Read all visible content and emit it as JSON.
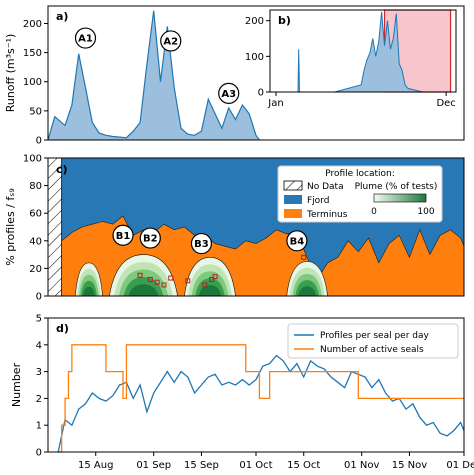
{
  "chart_data": [
    {
      "panel": "a)",
      "type": "area",
      "ylabel": "Runoff (m³s⁻¹)",
      "ylim": [
        0,
        230
      ],
      "yticks": [
        0,
        50,
        100,
        150,
        200
      ],
      "color": "#1f77b4",
      "x": [
        "08-01",
        "08-03",
        "08-06",
        "08-08",
        "08-10",
        "08-12",
        "08-14",
        "08-16",
        "08-18",
        "08-20",
        "08-22",
        "08-24",
        "08-26",
        "08-28",
        "08-30",
        "09-01",
        "09-03",
        "09-05",
        "09-07",
        "09-09",
        "09-11",
        "09-13",
        "09-15",
        "09-17",
        "09-19",
        "09-21",
        "09-23",
        "09-25",
        "09-27",
        "09-29",
        "10-01",
        "10-02"
      ],
      "values": [
        0,
        40,
        25,
        60,
        148,
        90,
        30,
        12,
        8,
        6,
        5,
        4,
        15,
        30,
        130,
        222,
        100,
        195,
        90,
        20,
        10,
        8,
        15,
        70,
        45,
        20,
        55,
        35,
        60,
        45,
        8,
        0
      ],
      "annotations": [
        {
          "label": "A1",
          "x": "08-12",
          "y": 175
        },
        {
          "label": "A2",
          "x": "09-06",
          "y": 170
        },
        {
          "label": "A3",
          "x": "09-23",
          "y": 80
        }
      ]
    },
    {
      "panel": "b)",
      "type": "area",
      "xticklabels": [
        "Jan",
        "Dec"
      ],
      "ylim": [
        0,
        230
      ],
      "yticks": [
        0,
        100,
        200
      ],
      "color": "#1f77b4",
      "highlight_span": {
        "label_from": "August",
        "label_to": "December",
        "color": "#f7c6cc",
        "edge_color": "#d62728"
      },
      "x_month": [
        0,
        1.5,
        1.55,
        1.6,
        2,
        4,
        5.8,
        6.0,
        6.2,
        6.4,
        6.6,
        6.8,
        7.0,
        7.2,
        7.4,
        7.6,
        7.8,
        8.0,
        8.2,
        8.4,
        8.6,
        8.8,
        9.0,
        10,
        11.5
      ],
      "values": [
        0,
        0,
        120,
        0,
        0,
        0,
        20,
        60,
        90,
        110,
        150,
        100,
        140,
        225,
        130,
        200,
        120,
        150,
        220,
        80,
        60,
        20,
        10,
        0,
        0
      ]
    },
    {
      "panel": "c)",
      "type": "area",
      "ylabel": "% profiles / fₛ₉",
      "ylim": [
        0,
        100
      ],
      "yticks": [
        0,
        20,
        40,
        60,
        80,
        100
      ],
      "no_data_until": "08-05",
      "legend": {
        "title": "Profile location:",
        "items": [
          "No Data",
          "Fjord",
          "Terminus"
        ],
        "colorbar_title": "Plume (% of tests)",
        "colorbar_ticks": [
          "0",
          "100"
        ]
      },
      "colors": {
        "fjord": "#2878b5",
        "terminus": "#ff7f0e",
        "plume": "#2e9e4f",
        "marker": "#b22222"
      },
      "terminus_x": [
        "08-05",
        "08-08",
        "08-11",
        "08-14",
        "08-17",
        "08-20",
        "08-23",
        "08-26",
        "08-29",
        "09-01",
        "09-04",
        "09-07",
        "09-10",
        "09-13",
        "09-16",
        "09-19",
        "09-22",
        "09-25",
        "09-28",
        "10-01",
        "10-04",
        "10-07",
        "10-10",
        "10-13",
        "10-16",
        "10-19",
        "10-22",
        "10-25",
        "10-28",
        "10-31",
        "11-03",
        "11-06",
        "11-09",
        "11-12",
        "11-15",
        "11-18",
        "11-21",
        "11-24",
        "11-27",
        "11-30",
        "12-01"
      ],
      "terminus_values": [
        40,
        46,
        50,
        52,
        54,
        52,
        58,
        44,
        48,
        46,
        52,
        48,
        50,
        44,
        44,
        38,
        36,
        34,
        40,
        38,
        42,
        48,
        45,
        46,
        28,
        12,
        24,
        28,
        40,
        32,
        42,
        24,
        38,
        44,
        28,
        48,
        30,
        44,
        48,
        42,
        36
      ],
      "plume_segments": [
        {
          "from": "08-09",
          "to": "08-17",
          "max": 24
        },
        {
          "from": "08-19",
          "to": "09-08",
          "max": 30
        },
        {
          "from": "09-10",
          "to": "09-25",
          "max": 28
        },
        {
          "from": "10-10",
          "to": "10-22",
          "max": 25
        }
      ],
      "markers": [
        {
          "x": "08-28",
          "y": 15
        },
        {
          "x": "08-31",
          "y": 12
        },
        {
          "x": "09-02",
          "y": 10
        },
        {
          "x": "09-04",
          "y": 8
        },
        {
          "x": "09-06",
          "y": 13
        },
        {
          "x": "09-11",
          "y": 11
        },
        {
          "x": "09-16",
          "y": 8
        },
        {
          "x": "09-18",
          "y": 12
        },
        {
          "x": "09-19",
          "y": 14
        },
        {
          "x": "10-15",
          "y": 28
        }
      ],
      "annotations": [
        {
          "label": "B1",
          "x": "08-23",
          "y": 44
        },
        {
          "label": "B2",
          "x": "08-31",
          "y": 42
        },
        {
          "label": "B3",
          "x": "09-15",
          "y": 38
        },
        {
          "label": "B4",
          "x": "10-13",
          "y": 40
        }
      ]
    },
    {
      "panel": "d)",
      "type": "line",
      "ylabel": "Number",
      "ylim": [
        0,
        5
      ],
      "yticks": [
        0,
        1,
        2,
        3,
        4,
        5
      ],
      "xticklabels": [
        "15 Aug",
        "01 Sep",
        "15 Sep",
        "01 Oct",
        "15 Oct",
        "01 Nov",
        "15 Nov",
        "01 Dec"
      ],
      "x": [
        "08-04",
        "08-06",
        "08-08",
        "08-10",
        "08-12",
        "08-14",
        "08-16",
        "08-18",
        "08-20",
        "08-22",
        "08-24",
        "08-26",
        "08-28",
        "08-30",
        "09-01",
        "09-03",
        "09-05",
        "09-07",
        "09-09",
        "09-11",
        "09-13",
        "09-15",
        "09-17",
        "09-19",
        "09-21",
        "09-23",
        "09-25",
        "09-27",
        "09-29",
        "10-01",
        "10-03",
        "10-05",
        "10-07",
        "10-09",
        "10-11",
        "10-13",
        "10-15",
        "10-17",
        "10-19",
        "10-21",
        "10-23",
        "10-25",
        "10-27",
        "10-29",
        "10-31",
        "11-02",
        "11-04",
        "11-06",
        "11-08",
        "11-10",
        "11-12",
        "11-14",
        "11-16",
        "11-18",
        "11-20",
        "11-22",
        "11-24",
        "11-26",
        "11-28",
        "11-30",
        "12-01"
      ],
      "series": [
        {
          "name": "Profiles per seal per day",
          "color": "#1f77b4",
          "values": [
            0,
            1.2,
            1.0,
            1.6,
            1.8,
            2.2,
            2.0,
            1.9,
            2.1,
            2.5,
            2.6,
            2.0,
            2.5,
            1.5,
            2.2,
            2.6,
            3.0,
            2.6,
            3.0,
            2.8,
            2.2,
            2.5,
            2.8,
            2.9,
            2.5,
            2.6,
            2.5,
            2.7,
            2.5,
            2.7,
            3.2,
            3.3,
            3.6,
            3.4,
            3.0,
            3.3,
            2.8,
            3.4,
            3.2,
            3.1,
            2.8,
            2.6,
            2.4,
            3.0,
            2.9,
            2.8,
            2.4,
            2.7,
            2.2,
            1.9,
            2.0,
            1.6,
            1.8,
            1.3,
            1.0,
            1.1,
            0.7,
            0.6,
            0.8,
            1.1,
            0.8
          ]
        },
        {
          "name": "Number of active seals",
          "color": "#ff7f0e",
          "step": true,
          "steps": [
            {
              "x": "08-04",
              "y": 0
            },
            {
              "x": "08-05",
              "y": 1
            },
            {
              "x": "08-06",
              "y": 2
            },
            {
              "x": "08-07",
              "y": 3
            },
            {
              "x": "08-08",
              "y": 4
            },
            {
              "x": "08-18",
              "y": 3
            },
            {
              "x": "08-23",
              "y": 2
            },
            {
              "x": "08-24",
              "y": 4
            },
            {
              "x": "09-28",
              "y": 3
            },
            {
              "x": "10-02",
              "y": 2
            },
            {
              "x": "10-05",
              "y": 3
            },
            {
              "x": "10-31",
              "y": 2
            },
            {
              "x": "12-01",
              "y": 2
            }
          ]
        }
      ]
    }
  ]
}
